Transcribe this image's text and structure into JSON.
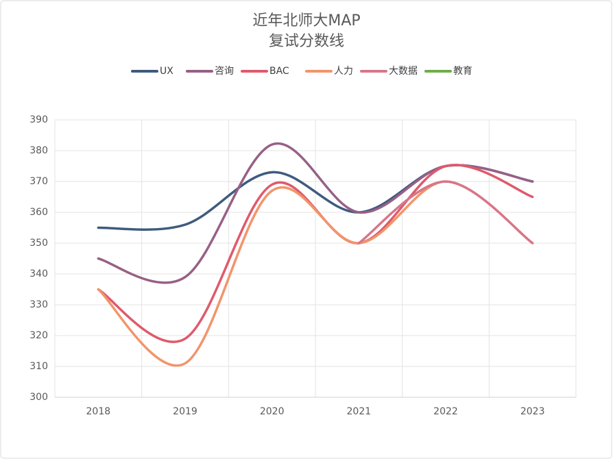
{
  "chart_data": {
    "type": "line",
    "title": "近年北师大MAP",
    "subtitle": "复试分数线",
    "categories": [
      "2018",
      "2019",
      "2020",
      "2021",
      "2022",
      "2023"
    ],
    "series": [
      {
        "name": "UX",
        "color": "#3e5b7e",
        "values": [
          355,
          356,
          373,
          360,
          375,
          370
        ]
      },
      {
        "name": "咨询",
        "color": "#976086",
        "values": [
          345,
          339,
          382,
          360,
          375,
          370
        ]
      },
      {
        "name": "BAC",
        "color": "#df5a6c",
        "values": [
          335,
          319,
          369,
          350,
          375,
          365
        ]
      },
      {
        "name": "人力",
        "color": "#f1956b",
        "values": [
          335,
          311,
          367,
          350,
          370,
          350
        ]
      },
      {
        "name": "大数据",
        "color": "#d7768a",
        "values": [
          null,
          null,
          null,
          350,
          370,
          350
        ]
      },
      {
        "name": "教育",
        "color": "#70ad47",
        "values": [
          null,
          null,
          null,
          null,
          null,
          null
        ]
      }
    ],
    "ylim": [
      300,
      390
    ],
    "yticks": [
      300,
      310,
      320,
      330,
      340,
      350,
      360,
      370,
      380,
      390
    ],
    "grid": true,
    "legend": "top"
  }
}
